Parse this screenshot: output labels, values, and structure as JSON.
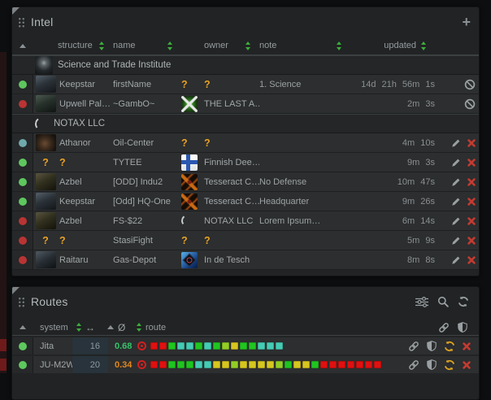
{
  "colors": {
    "sort_green": "#3cae3c",
    "unknown_orange": "#e8a024",
    "delete_red": "#c43a31",
    "icon_grey": "#9aa0a2",
    "refresh_orange": "#dfa321",
    "sec_high_green": "#35c46a",
    "sec_low_orange": "#e2871e",
    "status": {
      "green": "#5ec75e",
      "red": "#b93434",
      "teal": "#6fa9ab"
    },
    "squares": {
      "r": "#e01010",
      "g": "#20c520",
      "t": "#45cbb4",
      "y": "#d6c61f",
      "yg": "#93cd25"
    }
  },
  "intel": {
    "title": "Intel",
    "add_label": "+",
    "columns": {
      "structure": "structure",
      "name": "name",
      "owner": "owner",
      "note": "note",
      "updated": "updated"
    },
    "rows": [
      {
        "type": "group",
        "logo": "sti",
        "label": "Science and Trade Institute"
      },
      {
        "type": "data",
        "status": "green",
        "struct_icon": "keepstar",
        "structure": "Keepstar",
        "name": "firstName",
        "owner_icon": "unknown",
        "owner": "?",
        "owner_unknown": true,
        "note": "1. Science",
        "updated": "14d 21h 56m 1s",
        "action": "ban"
      },
      {
        "type": "data",
        "status": "red",
        "struct_icon": "upwell",
        "structure": "Upwell Pal…",
        "name": "~GambO~",
        "owner_icon": "last-a",
        "owner": "THE LAST A…",
        "owner_unknown": false,
        "note": "",
        "updated": "2m 3s",
        "action": "ban"
      },
      {
        "type": "group",
        "logo": "crescent",
        "label": "NOTAX LLC"
      },
      {
        "type": "data",
        "status": "teal",
        "struct_icon": "athanor",
        "structure": "Athanor",
        "name": "Oil-Center",
        "owner_icon": "unknown",
        "owner": "?",
        "owner_unknown": true,
        "note": "",
        "updated": "4m 10s",
        "action": "edit"
      },
      {
        "type": "data",
        "status": "green",
        "struct_icon": "unknown",
        "structure": "?",
        "name": "TYTEE",
        "owner_icon": "finnish",
        "owner": "Finnish Dee…",
        "owner_unknown": false,
        "note": "",
        "updated": "9m 3s",
        "action": "edit"
      },
      {
        "type": "data",
        "status": "green",
        "struct_icon": "azbel",
        "structure": "Azbel",
        "name": "[ODD] Indu2",
        "owner_icon": "tesseract",
        "owner": "Tesseract C…",
        "owner_unknown": false,
        "note": "No Defense",
        "updated": "10m 47s",
        "action": "edit"
      },
      {
        "type": "data",
        "status": "green",
        "struct_icon": "keepstar",
        "structure": "Keepstar",
        "name": "[Odd] HQ-One",
        "owner_icon": "tesseract",
        "owner": "Tesseract C…",
        "owner_unknown": false,
        "note": "Headquarter",
        "updated": "9m 26s",
        "action": "edit"
      },
      {
        "type": "data",
        "status": "red",
        "struct_icon": "azbel",
        "structure": "Azbel",
        "name": "FS-$22",
        "owner_icon": "crescent",
        "owner": "NOTAX LLC",
        "owner_unknown": false,
        "note": "Lorem Ipsum…",
        "updated": "6m 14s",
        "action": "edit"
      },
      {
        "type": "data",
        "status": "red",
        "struct_icon": "unknown",
        "structure": "?",
        "name": "StasiFight",
        "owner_icon": "unknown",
        "owner": "?",
        "owner_unknown": true,
        "note": "",
        "updated": "5m 9s",
        "action": "edit"
      },
      {
        "type": "data",
        "status": "red",
        "struct_icon": "raitaru",
        "structure": "Raitaru",
        "name": "Gas-Depot",
        "owner_icon": "tesch",
        "owner": "In de Tesch",
        "owner_unknown": false,
        "note": "",
        "updated": "8m 8s",
        "action": "edit"
      }
    ]
  },
  "routes": {
    "title": "Routes",
    "columns": {
      "system": "system",
      "arrows": "↔",
      "avg": "Ø",
      "route": "route"
    },
    "rows": [
      {
        "status": "green",
        "system": "Jita",
        "jumps": "16",
        "avg_sec": "0.68",
        "sec_level": "high",
        "squares": [
          "r",
          "r",
          "g",
          "t",
          "t",
          "g",
          "t",
          "g",
          "yg",
          "y",
          "g",
          "g",
          "t",
          "t",
          "t"
        ]
      },
      {
        "status": "green",
        "system": "JU-M2W",
        "jumps": "20",
        "avg_sec": "0.34",
        "sec_level": "low",
        "squares": [
          "r",
          "r",
          "g",
          "g",
          "g",
          "t",
          "t",
          "y",
          "y",
          "yg",
          "y",
          "y",
          "y",
          "y",
          "yg",
          "g",
          "y",
          "y",
          "g",
          "r",
          "r",
          "r",
          "r",
          "r",
          "r",
          "r"
        ]
      }
    ]
  }
}
